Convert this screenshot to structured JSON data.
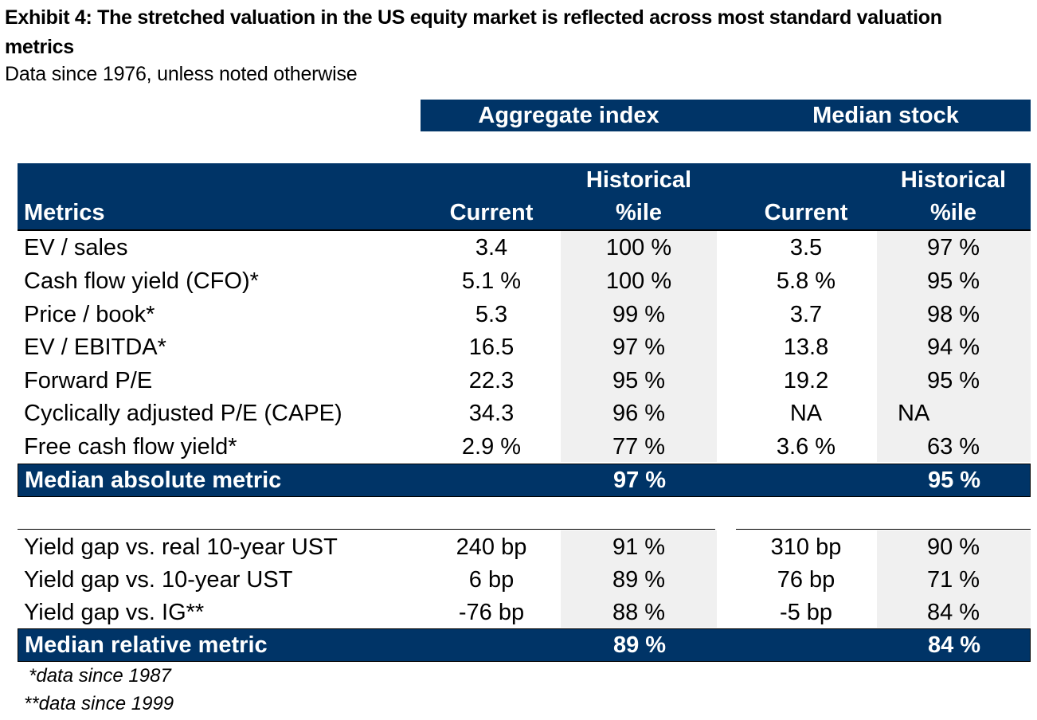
{
  "title": "Exhibit 4: The stretched valuation in the US equity market is reflected across most standard valuation metrics",
  "subtitle": "Data since 1976, unless noted otherwise",
  "groups": {
    "aggregate": "Aggregate index",
    "median": "Median stock"
  },
  "columns": {
    "metrics": "Metrics",
    "agg_current": "Current",
    "agg_hist_l1": "Historical",
    "agg_hist_l2": "%ile",
    "med_current": "Current",
    "med_hist_l1": "Historical",
    "med_hist_l2": "%ile"
  },
  "absolute_rows": [
    [
      "EV / sales",
      "3.4",
      "100 %",
      "3.5",
      "97 %"
    ],
    [
      "Cash flow yield (CFO)*",
      "5.1 %",
      "100 %",
      "5.8 %",
      "95 %"
    ],
    [
      "Price / book*",
      "5.3",
      "99 %",
      "3.7",
      "98 %"
    ],
    [
      "EV / EBITDA*",
      "16.5",
      "97 %",
      "13.8",
      "94 %"
    ],
    [
      "Forward P/E",
      "22.3",
      "95 %",
      "19.2",
      "95 %"
    ],
    [
      "Cyclically adjusted P/E (CAPE)",
      "34.3",
      "96 %",
      "NA",
      "NA"
    ],
    [
      "Free cash flow yield*",
      "2.9 %",
      "77 %",
      "3.6 %",
      "63 %"
    ]
  ],
  "absolute_summary": {
    "label": "Median absolute metric",
    "agg": "97 %",
    "med": "95 %"
  },
  "relative_rows": [
    [
      "Yield gap vs. real 10-year UST",
      "240 bp",
      "91 %",
      "310 bp",
      "90 %"
    ],
    [
      "Yield gap vs. 10-year UST",
      "6 bp",
      "89 %",
      "76 bp",
      "71 %"
    ],
    [
      "Yield gap vs. IG**",
      "-76 bp",
      "88 %",
      "-5 bp",
      "84 %"
    ]
  ],
  "relative_summary": {
    "label": "Median relative metric",
    "agg": "89 %",
    "med": "84 %"
  },
  "notes": [
    "*data since 1987",
    "**data since 1999"
  ],
  "colors": {
    "navy": "#003467",
    "shade": "#f0f0f0"
  }
}
